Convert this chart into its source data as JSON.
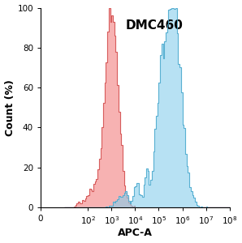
{
  "title": "DMC460",
  "xlabel": "APC-A",
  "ylabel": "Count (%)",
  "ylim": [
    0,
    100
  ],
  "title_fontsize": 11,
  "axis_label_fontsize": 9,
  "tick_fontsize": 7.5,
  "red_fill": "#F28080",
  "red_edge": "#D05050",
  "blue_fill": "#87CEEB",
  "blue_edge": "#4AA8CC",
  "background": "#ffffff",
  "red_peak_log": 3.0,
  "red_std_log": 0.28,
  "blue_peak_log": 5.65,
  "blue_std_log": 0.38
}
